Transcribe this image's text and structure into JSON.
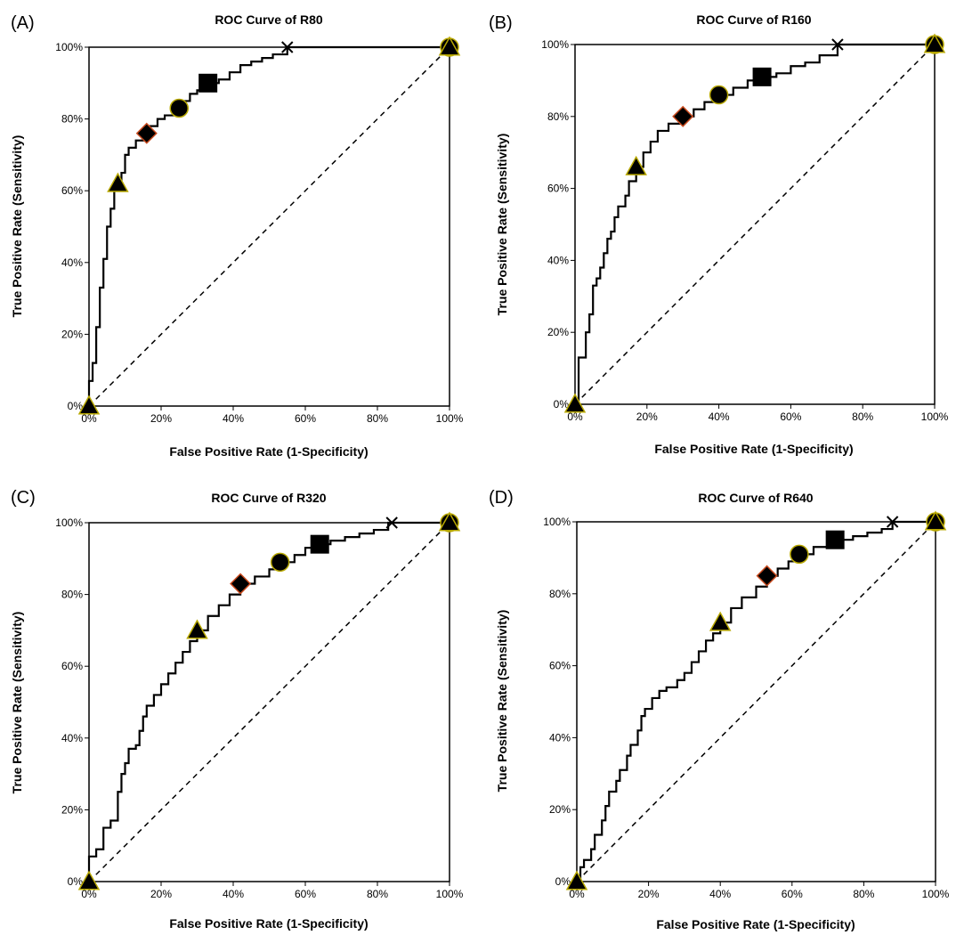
{
  "chart_data": [
    {
      "panel": "(A)",
      "type": "line",
      "title": "ROC Curve of R80",
      "xlabel": "False Positive Rate (1-Specificity)",
      "ylabel": "True Positive Rate (Sensitivity)",
      "xticks": [
        "0%",
        "20%",
        "40%",
        "60%",
        "80%",
        "100%"
      ],
      "yticks": [
        "0%",
        "20%",
        "40%",
        "60%",
        "80%",
        "100%"
      ],
      "xlim": [
        0,
        100
      ],
      "ylim": [
        0,
        100
      ],
      "grid": false,
      "series": [
        {
          "values": [
            [
              0,
              0
            ],
            [
              0,
              7
            ],
            [
              1,
              7
            ],
            [
              1,
              12
            ],
            [
              2,
              12
            ],
            [
              2,
              22
            ],
            [
              3,
              30
            ],
            [
              3,
              33
            ],
            [
              4,
              33
            ],
            [
              4,
              41
            ],
            [
              5,
              41
            ],
            [
              5,
              50
            ],
            [
              6,
              50
            ],
            [
              6,
              55
            ],
            [
              7,
              55
            ],
            [
              7,
              60
            ],
            [
              8,
              62
            ],
            [
              9,
              65
            ],
            [
              10,
              70
            ],
            [
              11,
              72
            ],
            [
              12,
              72
            ],
            [
              13,
              74
            ],
            [
              15,
              76
            ],
            [
              17,
              78
            ],
            [
              19,
              80
            ],
            [
              21,
              81
            ],
            [
              24,
              83
            ],
            [
              26,
              85
            ],
            [
              28,
              87
            ],
            [
              30,
              88
            ],
            [
              33,
              90
            ],
            [
              36,
              91
            ],
            [
              39,
              93
            ],
            [
              42,
              95
            ],
            [
              45,
              96
            ],
            [
              48,
              97
            ],
            [
              51,
              98
            ],
            [
              55,
              100
            ],
            [
              70,
              100
            ],
            [
              100,
              100
            ]
          ]
        }
      ],
      "reference_line": [
        [
          0,
          0
        ],
        [
          100,
          100
        ]
      ],
      "markers": [
        {
          "shape": "triangle",
          "x": 0,
          "y": 0
        },
        {
          "shape": "triangle",
          "x": 8,
          "y": 62
        },
        {
          "shape": "diamond",
          "x": 16,
          "y": 76
        },
        {
          "shape": "circle",
          "x": 25,
          "y": 83
        },
        {
          "shape": "square",
          "x": 33,
          "y": 90
        },
        {
          "shape": "x",
          "x": 55,
          "y": 100
        },
        {
          "shape": "circle",
          "x": 100,
          "y": 100
        },
        {
          "shape": "triangle",
          "x": 100,
          "y": 100
        }
      ]
    },
    {
      "panel": "(B)",
      "type": "line",
      "title": "ROC Curve of R160",
      "xlabel": "False Positive Rate (1-Specificity)",
      "ylabel": "True Positive Rate (Sensitivity)",
      "xticks": [
        "0%",
        "20%",
        "40%",
        "60%",
        "80%",
        "100%"
      ],
      "yticks": [
        "0%",
        "20%",
        "40%",
        "60%",
        "80%",
        "100%"
      ],
      "xlim": [
        0,
        100
      ],
      "ylim": [
        0,
        100
      ],
      "grid": false,
      "series": [
        {
          "values": [
            [
              0,
              0
            ],
            [
              1,
              0
            ],
            [
              1,
              13
            ],
            [
              3,
              14
            ],
            [
              3,
              20
            ],
            [
              4,
              25
            ],
            [
              5,
              33
            ],
            [
              6,
              35
            ],
            [
              7,
              38
            ],
            [
              8,
              42
            ],
            [
              9,
              46
            ],
            [
              10,
              48
            ],
            [
              11,
              52
            ],
            [
              12,
              55
            ],
            [
              14,
              58
            ],
            [
              15,
              62
            ],
            [
              17,
              66
            ],
            [
              19,
              70
            ],
            [
              21,
              73
            ],
            [
              23,
              76
            ],
            [
              26,
              78
            ],
            [
              30,
              80
            ],
            [
              33,
              82
            ],
            [
              36,
              84
            ],
            [
              40,
              86
            ],
            [
              44,
              88
            ],
            [
              48,
              90
            ],
            [
              52,
              91
            ],
            [
              56,
              92
            ],
            [
              60,
              94
            ],
            [
              64,
              95
            ],
            [
              68,
              97
            ],
            [
              73,
              100
            ],
            [
              85,
              100
            ],
            [
              100,
              100
            ]
          ]
        }
      ],
      "reference_line": [
        [
          0,
          0
        ],
        [
          100,
          100
        ]
      ],
      "markers": [
        {
          "shape": "triangle",
          "x": 0,
          "y": 0
        },
        {
          "shape": "triangle",
          "x": 17,
          "y": 66
        },
        {
          "shape": "diamond",
          "x": 30,
          "y": 80
        },
        {
          "shape": "circle",
          "x": 40,
          "y": 86
        },
        {
          "shape": "square",
          "x": 52,
          "y": 91
        },
        {
          "shape": "x",
          "x": 73,
          "y": 100
        },
        {
          "shape": "circle",
          "x": 100,
          "y": 100
        },
        {
          "shape": "triangle",
          "x": 100,
          "y": 100
        }
      ]
    },
    {
      "panel": "(C)",
      "type": "line",
      "title": "ROC Curve of R320",
      "xlabel": "False Positive Rate (1-Specificity)",
      "ylabel": "True Positive Rate (Sensitivity)",
      "xticks": [
        "0%",
        "20%",
        "40%",
        "60%",
        "80%",
        "100%"
      ],
      "yticks": [
        "0%",
        "20%",
        "40%",
        "60%",
        "80%",
        "100%"
      ],
      "xlim": [
        0,
        100
      ],
      "ylim": [
        0,
        100
      ],
      "grid": false,
      "series": [
        {
          "values": [
            [
              0,
              0
            ],
            [
              0,
              7
            ],
            [
              2,
              9
            ],
            [
              4,
              15
            ],
            [
              6,
              17
            ],
            [
              8,
              25
            ],
            [
              9,
              30
            ],
            [
              10,
              33
            ],
            [
              11,
              37
            ],
            [
              13,
              38
            ],
            [
              14,
              42
            ],
            [
              15,
              46
            ],
            [
              16,
              49
            ],
            [
              18,
              52
            ],
            [
              20,
              55
            ],
            [
              22,
              58
            ],
            [
              24,
              61
            ],
            [
              26,
              64
            ],
            [
              28,
              67
            ],
            [
              30,
              70
            ],
            [
              33,
              74
            ],
            [
              36,
              77
            ],
            [
              39,
              80
            ],
            [
              42,
              83
            ],
            [
              46,
              85
            ],
            [
              50,
              87
            ],
            [
              53,
              89
            ],
            [
              57,
              91
            ],
            [
              60,
              93
            ],
            [
              63,
              94
            ],
            [
              67,
              95
            ],
            [
              71,
              96
            ],
            [
              75,
              97
            ],
            [
              79,
              98
            ],
            [
              83,
              100
            ],
            [
              90,
              100
            ],
            [
              100,
              100
            ]
          ]
        }
      ],
      "reference_line": [
        [
          0,
          0
        ],
        [
          100,
          100
        ]
      ],
      "markers": [
        {
          "shape": "triangle",
          "x": 0,
          "y": 0
        },
        {
          "shape": "triangle",
          "x": 30,
          "y": 70
        },
        {
          "shape": "diamond",
          "x": 42,
          "y": 83
        },
        {
          "shape": "circle",
          "x": 53,
          "y": 89
        },
        {
          "shape": "square",
          "x": 64,
          "y": 94
        },
        {
          "shape": "x",
          "x": 84,
          "y": 100
        },
        {
          "shape": "circle",
          "x": 100,
          "y": 100
        },
        {
          "shape": "triangle",
          "x": 100,
          "y": 100
        }
      ]
    },
    {
      "panel": "(D)",
      "type": "line",
      "title": "ROC Curve of R640",
      "xlabel": "False Positive Rate (1-Specificity)",
      "ylabel": "True Positive Rate (Sensitivity)",
      "xticks": [
        "0%",
        "20%",
        "40%",
        "60%",
        "80%",
        "100%"
      ],
      "yticks": [
        "0%",
        "20%",
        "40%",
        "60%",
        "80%",
        "100%"
      ],
      "xlim": [
        0,
        100
      ],
      "ylim": [
        0,
        100
      ],
      "grid": false,
      "series": [
        {
          "values": [
            [
              0,
              0
            ],
            [
              1,
              4
            ],
            [
              2,
              6
            ],
            [
              4,
              9
            ],
            [
              5,
              13
            ],
            [
              7,
              17
            ],
            [
              8,
              21
            ],
            [
              9,
              25
            ],
            [
              11,
              28
            ],
            [
              12,
              31
            ],
            [
              14,
              35
            ],
            [
              15,
              38
            ],
            [
              17,
              42
            ],
            [
              18,
              46
            ],
            [
              19,
              48
            ],
            [
              21,
              51
            ],
            [
              23,
              53
            ],
            [
              25,
              54
            ],
            [
              28,
              56
            ],
            [
              30,
              58
            ],
            [
              32,
              61
            ],
            [
              34,
              64
            ],
            [
              36,
              67
            ],
            [
              38,
              69
            ],
            [
              40,
              72
            ],
            [
              43,
              76
            ],
            [
              46,
              79
            ],
            [
              50,
              82
            ],
            [
              53,
              85
            ],
            [
              56,
              87
            ],
            [
              59,
              89
            ],
            [
              62,
              91
            ],
            [
              66,
              93
            ],
            [
              70,
              94
            ],
            [
              73,
              95
            ],
            [
              77,
              96
            ],
            [
              81,
              97
            ],
            [
              85,
              98
            ],
            [
              88,
              100
            ],
            [
              93,
              100
            ],
            [
              100,
              100
            ]
          ]
        }
      ],
      "reference_line": [
        [
          0,
          0
        ],
        [
          100,
          100
        ]
      ],
      "markers": [
        {
          "shape": "triangle",
          "x": 0,
          "y": 0
        },
        {
          "shape": "triangle",
          "x": 40,
          "y": 72
        },
        {
          "shape": "diamond",
          "x": 53,
          "y": 85
        },
        {
          "shape": "circle",
          "x": 62,
          "y": 91
        },
        {
          "shape": "square",
          "x": 72,
          "y": 95
        },
        {
          "shape": "x",
          "x": 88,
          "y": 100
        },
        {
          "shape": "circle",
          "x": 100,
          "y": 100
        },
        {
          "shape": "triangle",
          "x": 100,
          "y": 100
        }
      ]
    }
  ],
  "colors": {
    "curve": "#000000",
    "reference": "#000000",
    "marker_fill": "#000000",
    "triangle_stroke": "#b8a800",
    "diamond_stroke": "#c84a1e",
    "circle_stroke": "#b8a800",
    "square_stroke": "#000000"
  }
}
